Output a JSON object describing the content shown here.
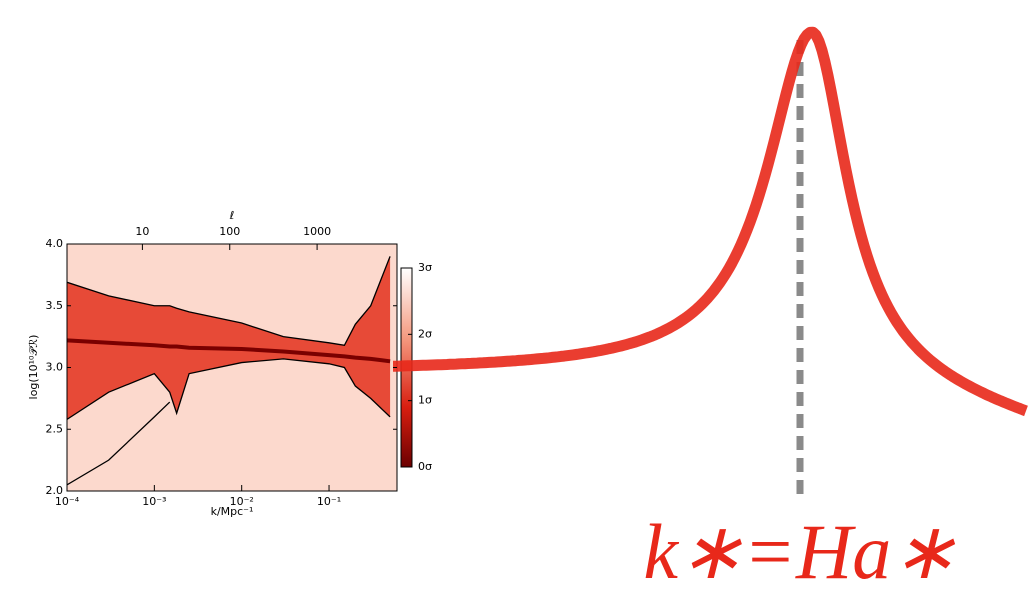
{
  "chart_data": {
    "type": "line",
    "xlabel": "k/Mpc⁻¹",
    "ylabel": "log(10¹⁰𝒫ℛ)",
    "x2label": "ℓ",
    "xscale": "log",
    "x": [
      0.0001,
      0.0003,
      0.001,
      0.0015,
      0.0018,
      0.0025,
      0.01,
      0.03,
      0.1,
      0.15,
      0.2,
      0.3,
      0.5
    ],
    "series": [
      {
        "color": "#7a0000",
        "values": [
          3.22,
          3.2,
          3.18,
          3.17,
          3.17,
          3.16,
          3.15,
          3.13,
          3.1,
          3.09,
          3.08,
          3.07,
          3.05
        ]
      },
      {
        "color": "#000000",
        "values": [
          3.69,
          3.58,
          3.5,
          3.5,
          3.48,
          3.45,
          3.36,
          3.25,
          3.2,
          3.18,
          3.35,
          3.5,
          3.9
        ]
      },
      {
        "color": "#000000",
        "values": [
          2.58,
          2.8,
          2.95,
          2.8,
          2.63,
          2.95,
          3.04,
          3.07,
          3.03,
          3.0,
          2.85,
          2.75,
          2.6
        ]
      },
      {
        "color": "#000000",
        "values": [
          2.05,
          2.25,
          2.6,
          2.72,
          null,
          null,
          null,
          null,
          null,
          null,
          null,
          null,
          null
        ]
      }
    ],
    "xlim": [
      0.0001,
      0.6
    ],
    "xticks": [
      {
        "value": 0.0001,
        "label": "10⁻⁴"
      },
      {
        "value": 0.001,
        "label": "10⁻³"
      },
      {
        "value": 0.01,
        "label": "10⁻²"
      },
      {
        "value": 0.1,
        "label": "10⁻¹"
      }
    ],
    "x2lim": [
      1.37,
      8220
    ],
    "x2ticks": [
      10,
      100,
      1000
    ],
    "ylim": [
      2.0,
      4.0
    ],
    "yticks": [
      {
        "value": 2.0,
        "label": "2.0"
      },
      {
        "value": 2.5,
        "label": "2.5"
      },
      {
        "value": 3.0,
        "label": "3.0"
      },
      {
        "value": 3.5,
        "label": "3.5"
      },
      {
        "value": 4.0,
        "label": "4.0"
      }
    ],
    "colorbar_lim": [
      0,
      3
    ],
    "colorbar_ticks": [
      {
        "value": 0,
        "label": "0σ"
      },
      {
        "value": 1,
        "label": "1σ"
      },
      {
        "value": 2,
        "label": "2σ"
      },
      {
        "value": 3,
        "label": "3σ"
      }
    ],
    "band_color": "#e3301c",
    "annotation": "k∗=Ha∗"
  }
}
